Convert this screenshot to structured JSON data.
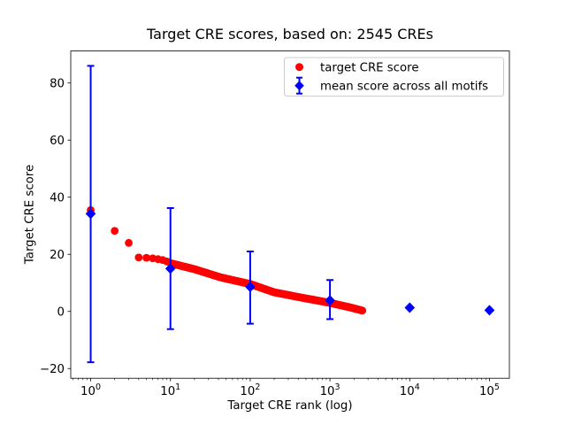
{
  "chart_data": {
    "type": "scatter",
    "title": "Target CRE scores, based on: 2545 CREs",
    "xlabel": "Target CRE rank (log)",
    "ylabel": "Target CRE score",
    "x_scale": "log",
    "xlim_log10": [
      -0.25,
      5.25
    ],
    "ylim": [
      -23.4,
      91.2
    ],
    "grid": false,
    "x_ticks": [
      {
        "base": "10",
        "exponent": "0",
        "value": 1
      },
      {
        "base": "10",
        "exponent": "1",
        "value": 10
      },
      {
        "base": "10",
        "exponent": "2",
        "value": 100
      },
      {
        "base": "10",
        "exponent": "3",
        "value": 1000
      },
      {
        "base": "10",
        "exponent": "4",
        "value": 10000
      },
      {
        "base": "10",
        "exponent": "5",
        "value": 100000
      }
    ],
    "y_ticks": [
      -20,
      0,
      20,
      40,
      60,
      80
    ],
    "legend": {
      "position": "upper right",
      "entries": [
        {
          "label": "target CRE score",
          "marker": "circle",
          "color": "#ff0000"
        },
        {
          "label": "mean score across all motifs",
          "marker": "diamond-errorbar",
          "color": "#0000ff"
        }
      ]
    },
    "series": [
      {
        "name": "target CRE score",
        "type": "scatter",
        "marker": "circle",
        "color": "#ff0000",
        "total_points": 2545,
        "anchor_points": [
          [
            1,
            35.5
          ],
          [
            2,
            28.2
          ],
          [
            3,
            24.0
          ],
          [
            4,
            18.9
          ],
          [
            5,
            18.8
          ],
          [
            6,
            18.6
          ],
          [
            7,
            18.3
          ],
          [
            8,
            18.0
          ],
          [
            9,
            17.5
          ],
          [
            10,
            16.9
          ],
          [
            20,
            14.8
          ],
          [
            43,
            11.9
          ],
          [
            100,
            9.6
          ],
          [
            200,
            6.7
          ],
          [
            430,
            4.9
          ],
          [
            1000,
            3.0
          ],
          [
            1800,
            1.4
          ],
          [
            2545,
            0.3
          ]
        ]
      },
      {
        "name": "mean score across all motifs",
        "type": "errorbar",
        "marker": "diamond",
        "color": "#0000ff",
        "points": [
          {
            "x": 1,
            "y": 34.2,
            "err_plus": 51.8,
            "err_minus": 52.0
          },
          {
            "x": 10,
            "y": 15.0,
            "err_plus": 21.2,
            "err_minus": 21.2
          },
          {
            "x": 100,
            "y": 8.6,
            "err_plus": 12.4,
            "err_minus": 12.9
          },
          {
            "x": 1000,
            "y": 3.9,
            "err_plus": 7.1,
            "err_minus": 6.6
          },
          {
            "x": 10000,
            "y": 1.3,
            "err_plus": 0,
            "err_minus": 0
          },
          {
            "x": 100000,
            "y": 0.4,
            "err_plus": 0,
            "err_minus": 0
          }
        ]
      }
    ]
  }
}
